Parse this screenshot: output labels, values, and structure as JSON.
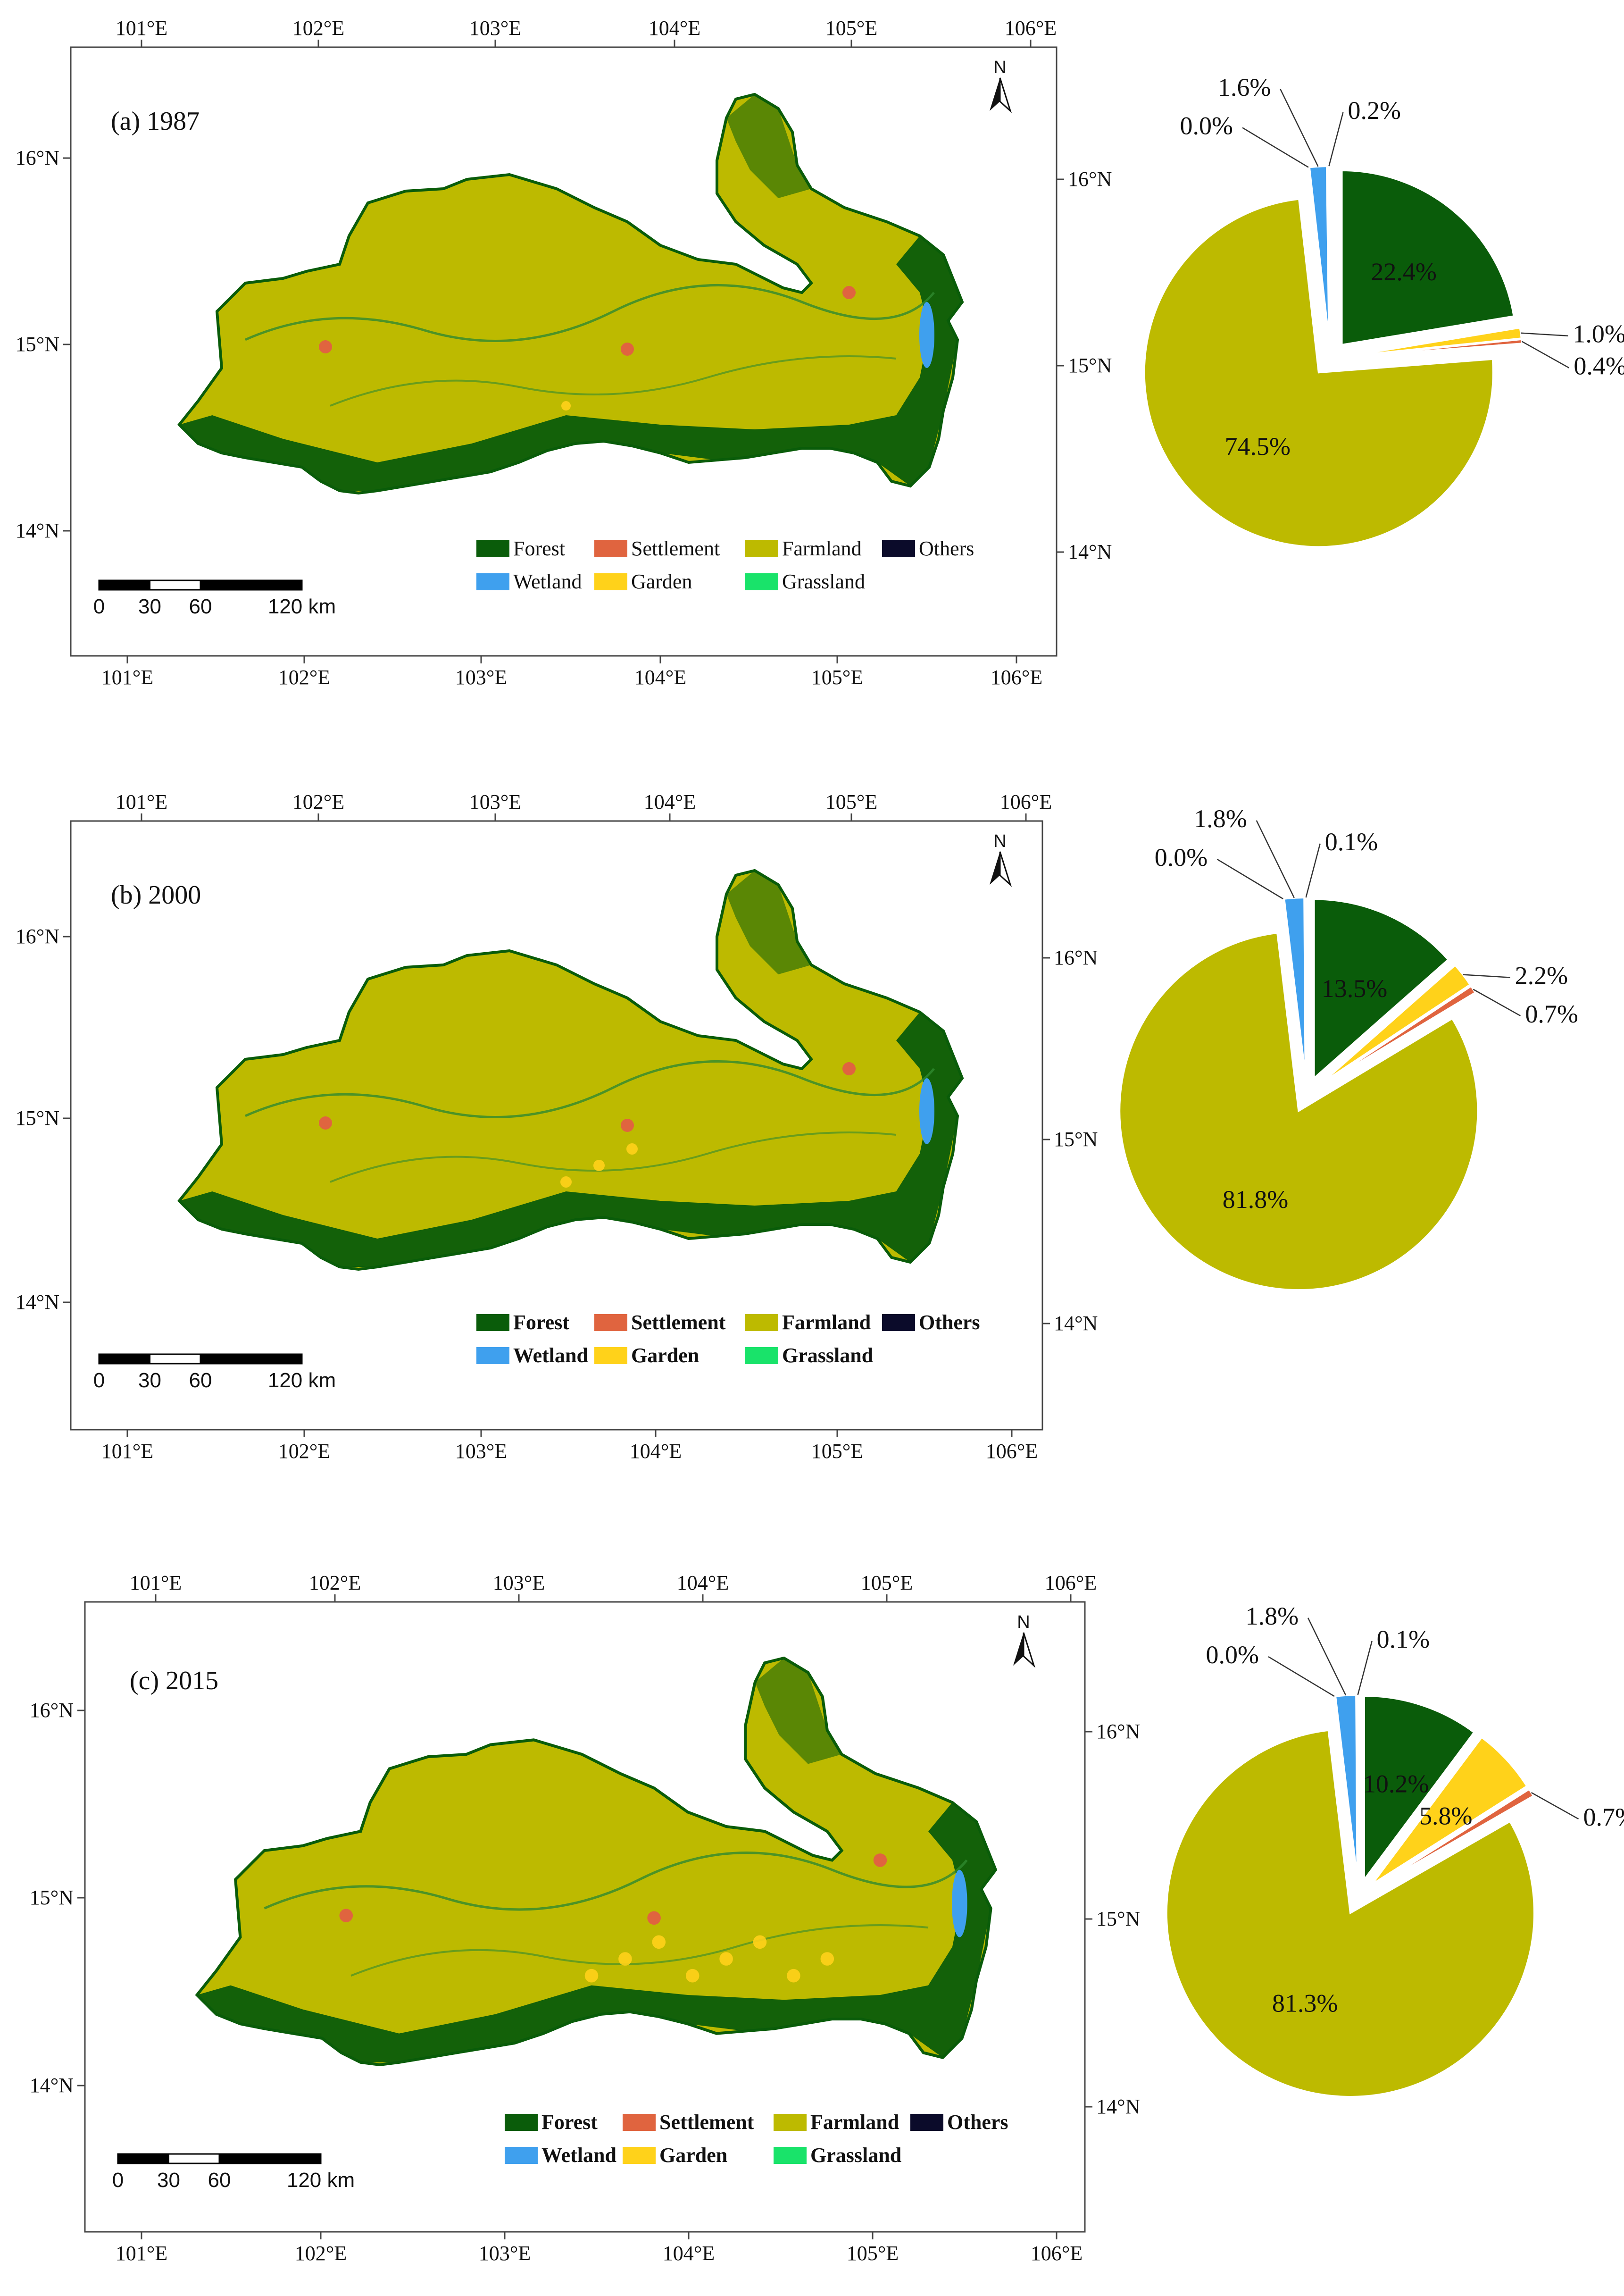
{
  "legend": {
    "classes": [
      {
        "key": "forest",
        "label": "Forest",
        "color": "#0a5c0a"
      },
      {
        "key": "settlement",
        "label": "Settlement",
        "color": "#e0643f"
      },
      {
        "key": "farmland",
        "label": "Farmland",
        "color": "#bdba00"
      },
      {
        "key": "others",
        "label": "Others",
        "color": "#0b0b2a"
      },
      {
        "key": "wetland",
        "label": "Wetland",
        "color": "#3fa0ee"
      },
      {
        "key": "garden",
        "label": "Garden",
        "color": "#ffd21a"
      },
      {
        "key": "grassland",
        "label": "Grassland",
        "color": "#19e36a"
      }
    ]
  },
  "axes": {
    "lon_labels": [
      "101°E",
      "102°E",
      "103°E",
      "104°E",
      "105°E",
      "106°E"
    ],
    "lat_labels": [
      "16°N",
      "15°N",
      "14°N"
    ]
  },
  "scale_bar": {
    "labels": [
      "0",
      "30",
      "60",
      "120 km"
    ]
  },
  "north_arrow": {
    "label": "N",
    "icon": "north-arrow-icon"
  },
  "chart_data": [
    {
      "type": "pie",
      "title": "(a) 1987",
      "categories": [
        "Forest",
        "Garden",
        "Settlement",
        "Farmland",
        "Others",
        "Wetland",
        "Grassland"
      ],
      "values": [
        22.4,
        1.0,
        0.4,
        74.5,
        0.0,
        1.6,
        0.2
      ],
      "value_labels": [
        "22.4%",
        "1.0%",
        "0.4%",
        "74.5%",
        "0.0%",
        "1.6%",
        "0.2%"
      ],
      "exploded": true
    },
    {
      "type": "pie",
      "title": "(b) 2000",
      "categories": [
        "Forest",
        "Garden",
        "Settlement",
        "Farmland",
        "Others",
        "Wetland",
        "Grassland"
      ],
      "values": [
        13.5,
        2.2,
        0.7,
        81.8,
        0.0,
        1.8,
        0.1
      ],
      "value_labels": [
        "13.5%",
        "2.2%",
        "0.7%",
        "81.8%",
        "0.0%",
        "1.8%",
        "0.1%"
      ],
      "exploded": true
    },
    {
      "type": "pie",
      "title": "(c) 2015",
      "categories": [
        "Forest",
        "Garden",
        "Settlement",
        "Farmland",
        "Others",
        "Wetland",
        "Grassland"
      ],
      "values": [
        10.2,
        5.8,
        0.7,
        81.3,
        0.0,
        1.8,
        0.1
      ],
      "value_labels": [
        "10.2%",
        "5.8%",
        "0.7%",
        "81.3%",
        "0.0%",
        "1.8%",
        "0.1%"
      ],
      "exploded": true
    }
  ]
}
